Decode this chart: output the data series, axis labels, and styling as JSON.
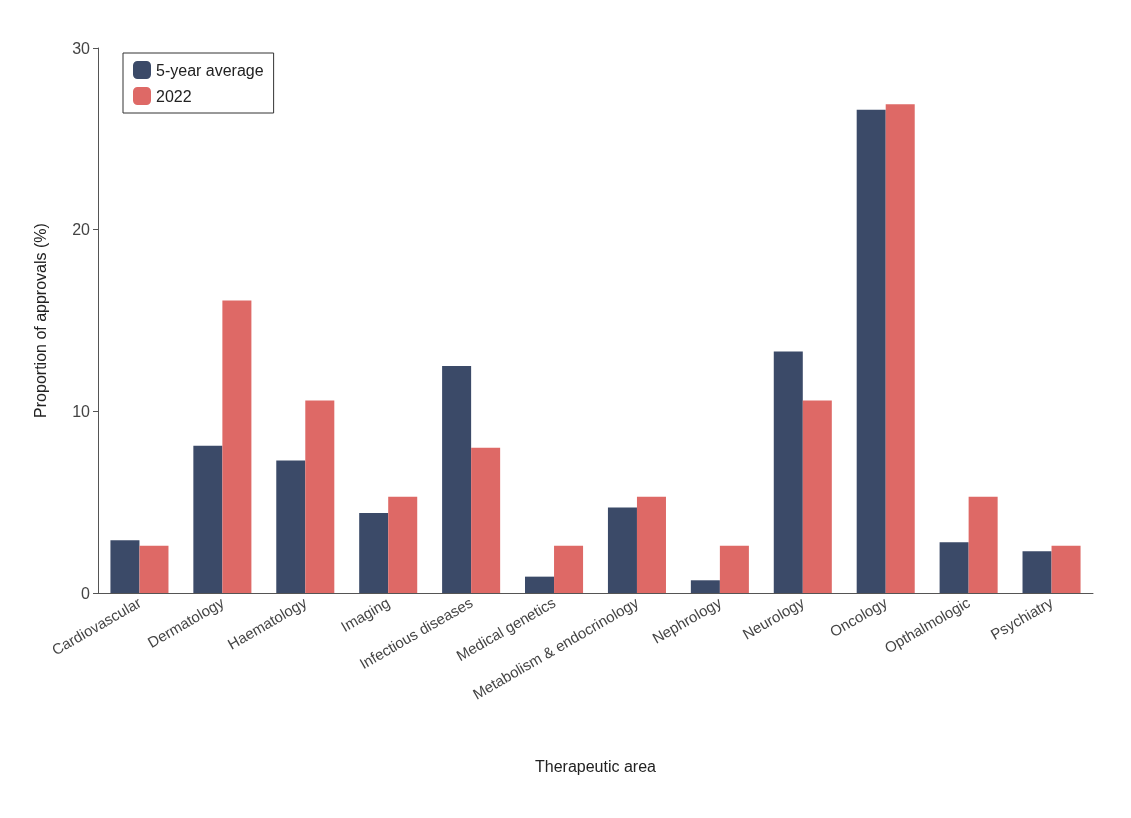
{
  "chart_data": {
    "type": "bar",
    "xlabel": "Therapeutic area",
    "ylabel": "Proportion of approvals (%)",
    "categories": [
      "Cardiovascular",
      "Dermatology",
      "Haematology",
      "Imaging",
      "Infectious diseases",
      "Medical genetics",
      "Metabolism & endocrinology",
      "Nephrology",
      "Neurology",
      "Oncology",
      "Opthalmologic",
      "Psychiatry"
    ],
    "series": [
      {
        "name": "5-year average",
        "color": "#3b4a68",
        "values": [
          2.9,
          8.1,
          7.3,
          4.4,
          12.5,
          0.9,
          4.7,
          0.7,
          13.3,
          26.6,
          2.8,
          2.3
        ]
      },
      {
        "name": "2022",
        "color": "#de6966",
        "values": [
          2.6,
          16.1,
          10.6,
          5.3,
          8.0,
          2.6,
          5.3,
          2.6,
          10.6,
          26.9,
          5.3,
          2.6
        ]
      }
    ],
    "ylim": [
      0,
      30
    ],
    "yticks": [
      0,
      10,
      20,
      30
    ],
    "grid": false,
    "legend": "top left"
  }
}
